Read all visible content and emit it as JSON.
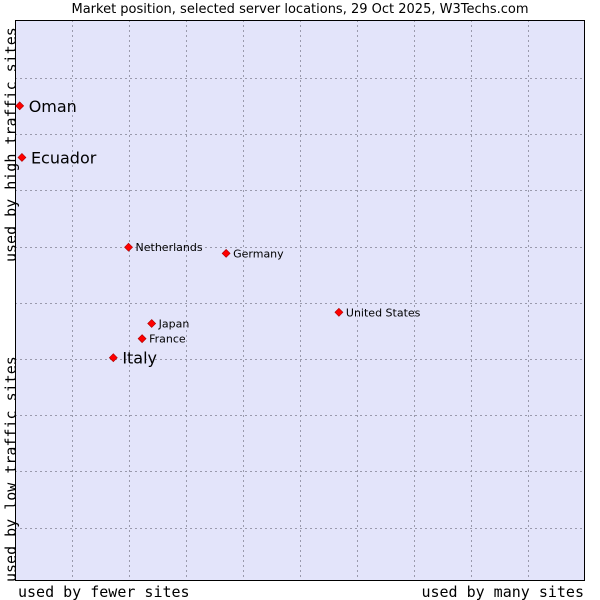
{
  "chart_data": {
    "type": "scatter",
    "title": "Market position, selected server locations, 29 Oct 2025, W3Techs.com",
    "ylabel_top": "used by high traffic sites",
    "ylabel_bottom": "used by low traffic sites",
    "xlabel_left": "used by fewer sites",
    "xlabel_right": "used by many sites",
    "grid": true,
    "xlim": [
      0,
      100
    ],
    "ylim": [
      0,
      100
    ],
    "points": [
      {
        "name": "Oman",
        "x": 0.3,
        "y": 84.7,
        "emphasis": true
      },
      {
        "name": "Ecuador",
        "x": 0.7,
        "y": 75.5,
        "emphasis": true
      },
      {
        "name": "Netherlands",
        "x": 19.6,
        "y": 59.5,
        "emphasis": false
      },
      {
        "name": "Germany",
        "x": 36.9,
        "y": 58.4,
        "emphasis": false
      },
      {
        "name": "United States",
        "x": 56.9,
        "y": 47.9,
        "emphasis": false
      },
      {
        "name": "Japan",
        "x": 23.7,
        "y": 45.9,
        "emphasis": false
      },
      {
        "name": "France",
        "x": 22.0,
        "y": 43.2,
        "emphasis": false
      },
      {
        "name": "Italy",
        "x": 16.9,
        "y": 39.8,
        "emphasis": true
      }
    ]
  },
  "colors": {
    "plot_bg": "#e3e4fa",
    "grid": "#9a9aac",
    "border": "#000000",
    "marker": "#ff0000"
  }
}
